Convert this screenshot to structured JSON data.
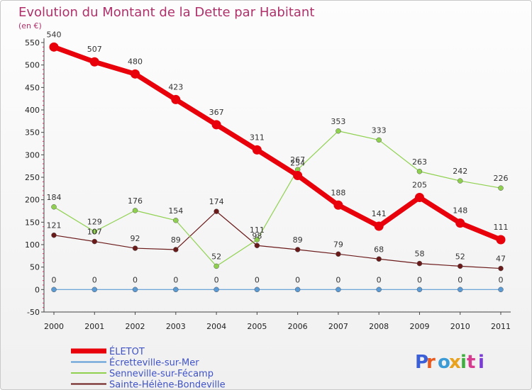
{
  "chart_data": {
    "type": "line",
    "title": "Evolution du Montant de la Dette par Habitant",
    "subtitle": "(en €)",
    "xlabel": "",
    "ylabel": "",
    "x": [
      "2000",
      "2001",
      "2002",
      "2003",
      "2004",
      "2005",
      "2006",
      "2007",
      "2008",
      "2009",
      "2010",
      "2011"
    ],
    "yticks": [
      550,
      500,
      450,
      400,
      350,
      300,
      250,
      200,
      150,
      100,
      50,
      0,
      -50
    ],
    "ylim": [
      -50,
      550
    ],
    "grid": false,
    "legend_position": "bottom-left",
    "series": [
      {
        "name": "ÉLETOT",
        "color": "#e8000b",
        "values": [
          540,
          507,
          480,
          423,
          367,
          311,
          254,
          188,
          141,
          205,
          148,
          111
        ]
      },
      {
        "name": "Écretteville-sur-Mer",
        "color": "#5b9bd5",
        "values": [
          0,
          0,
          0,
          0,
          0,
          0,
          0,
          0,
          0,
          0,
          0,
          0
        ]
      },
      {
        "name": "Senneville-sur-Fécamp",
        "color": "#8fd14f",
        "values": [
          184,
          129,
          176,
          154,
          52,
          111,
          267,
          353,
          333,
          263,
          242,
          226
        ]
      },
      {
        "name": "Sainte-Hélène-Bondeville",
        "color": "#6b1a1a",
        "values": [
          121,
          107,
          92,
          89,
          174,
          98,
          89,
          79,
          68,
          58,
          52,
          47
        ]
      }
    ]
  },
  "logo": {
    "text": "Proxiti"
  }
}
